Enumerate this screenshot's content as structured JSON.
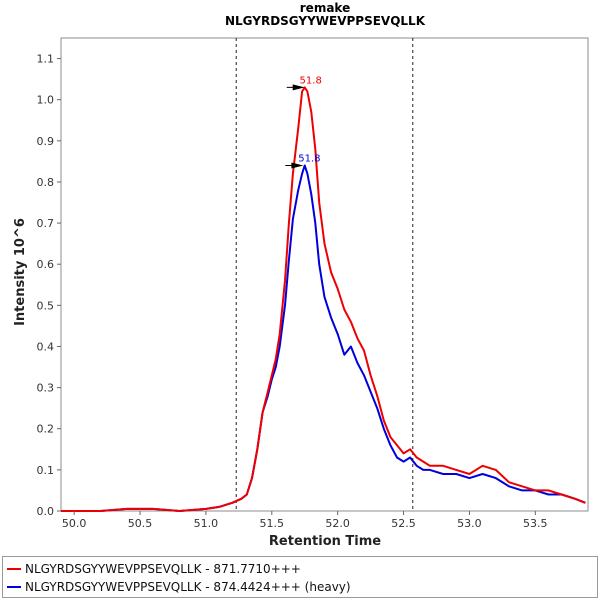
{
  "chart_data": {
    "type": "line",
    "title": "remake",
    "subtitle": "NLGYRDSGYYWEVPPSEVQLLK",
    "xlabel": "Retention Time",
    "ylabel": "Intensity 10^6",
    "xlim": [
      49.9,
      53.9
    ],
    "ylim": [
      0,
      1.15
    ],
    "x_ticks": [
      "50.0",
      "50.5",
      "51.0",
      "51.5",
      "52.0",
      "52.5",
      "53.0",
      "53.5"
    ],
    "y_ticks": [
      "0.0",
      "0.1",
      "0.2",
      "0.3",
      "0.4",
      "0.5",
      "0.6",
      "0.7",
      "0.8",
      "0.9",
      "1.0",
      "1.1"
    ],
    "grid": false,
    "vertical_markers": [
      51.23,
      52.57
    ],
    "series": [
      {
        "name": "NLGYRDSGYYWEVPPSEVQLLK - 871.7710+++",
        "color": "#ee0000",
        "peak_label": "51.8",
        "peak": [
          51.78,
          1.03
        ],
        "x": [
          49.9,
          50.2,
          50.4,
          50.6,
          50.8,
          51.0,
          51.1,
          51.2,
          51.27,
          51.31,
          51.35,
          51.39,
          51.43,
          51.47,
          51.5,
          51.53,
          51.56,
          51.6,
          51.63,
          51.66,
          51.7,
          51.73,
          51.75,
          51.77,
          51.8,
          51.83,
          51.86,
          51.9,
          51.95,
          52.0,
          52.05,
          52.1,
          52.15,
          52.2,
          52.25,
          52.3,
          52.35,
          52.4,
          52.45,
          52.5,
          52.55,
          52.6,
          52.65,
          52.7,
          52.8,
          52.9,
          53.0,
          53.1,
          53.2,
          53.3,
          53.4,
          53.5,
          53.6,
          53.7,
          53.8,
          53.88
        ],
        "y": [
          0.0,
          0.0,
          0.005,
          0.005,
          0.0,
          0.005,
          0.01,
          0.02,
          0.03,
          0.04,
          0.08,
          0.15,
          0.24,
          0.29,
          0.33,
          0.37,
          0.43,
          0.56,
          0.7,
          0.82,
          0.93,
          1.02,
          1.03,
          1.02,
          0.97,
          0.88,
          0.75,
          0.65,
          0.58,
          0.54,
          0.49,
          0.46,
          0.42,
          0.39,
          0.33,
          0.28,
          0.22,
          0.18,
          0.16,
          0.14,
          0.15,
          0.13,
          0.12,
          0.11,
          0.11,
          0.1,
          0.09,
          0.11,
          0.1,
          0.07,
          0.06,
          0.05,
          0.05,
          0.04,
          0.03,
          0.02
        ]
      },
      {
        "name": "NLGYRDSGYYWEVPPSEVQLLK - 874.4424+++ (heavy)",
        "color": "#0000dd",
        "peak_label": "51.8",
        "peak": [
          51.77,
          0.84
        ],
        "x": [
          49.9,
          50.2,
          50.4,
          50.6,
          50.8,
          51.0,
          51.1,
          51.2,
          51.27,
          51.31,
          51.35,
          51.39,
          51.43,
          51.47,
          51.5,
          51.53,
          51.56,
          51.6,
          51.63,
          51.66,
          51.7,
          51.73,
          51.75,
          51.77,
          51.8,
          51.83,
          51.86,
          51.9,
          51.95,
          52.0,
          52.05,
          52.1,
          52.15,
          52.2,
          52.25,
          52.3,
          52.35,
          52.4,
          52.45,
          52.5,
          52.55,
          52.6,
          52.65,
          52.7,
          52.8,
          52.9,
          53.0,
          53.1,
          53.2,
          53.3,
          53.4,
          53.5,
          53.6,
          53.7,
          53.8,
          53.88
        ],
        "y": [
          0.0,
          0.0,
          0.005,
          0.005,
          0.0,
          0.005,
          0.01,
          0.02,
          0.03,
          0.04,
          0.08,
          0.15,
          0.24,
          0.28,
          0.32,
          0.35,
          0.4,
          0.5,
          0.61,
          0.71,
          0.78,
          0.82,
          0.84,
          0.82,
          0.77,
          0.7,
          0.6,
          0.52,
          0.47,
          0.43,
          0.38,
          0.4,
          0.36,
          0.33,
          0.29,
          0.25,
          0.2,
          0.16,
          0.13,
          0.12,
          0.13,
          0.11,
          0.1,
          0.1,
          0.09,
          0.09,
          0.08,
          0.09,
          0.08,
          0.06,
          0.05,
          0.05,
          0.04,
          0.04,
          0.03,
          0.02
        ]
      }
    ]
  }
}
